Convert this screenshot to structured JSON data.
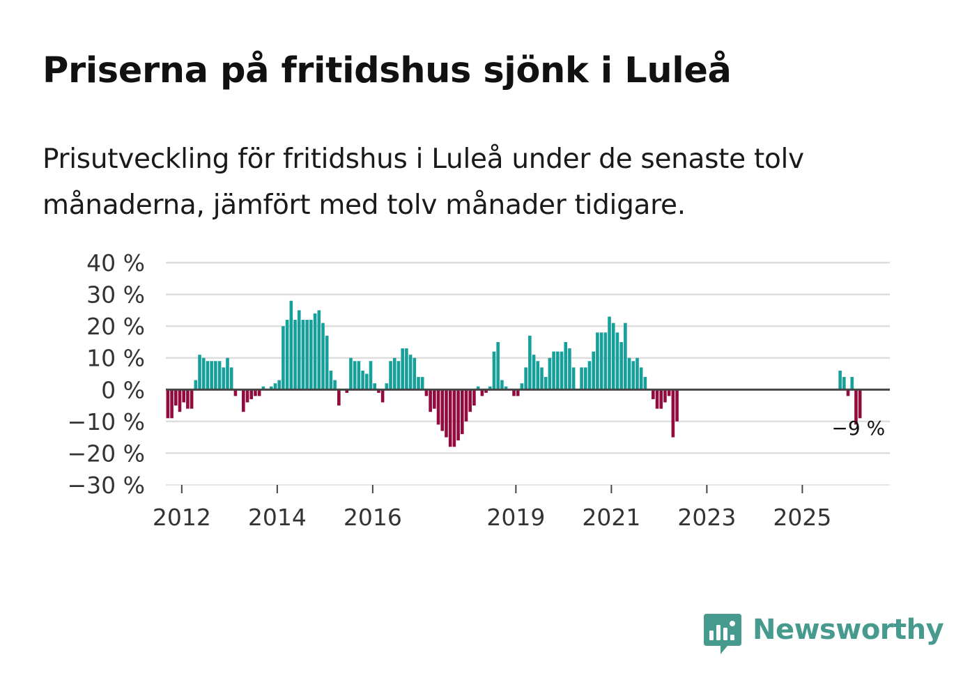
{
  "title": "Priserna på fritidshus sjönk i Luleå",
  "subtitle": "Prisutveckling för fritidshus i Luleå under de senaste tolv månaderna, jämfört med tolv månader tidigare.",
  "brand": {
    "name": "Newsworthy",
    "icon": "bar-chart-speech-bubble-icon",
    "color": "#479a8e"
  },
  "colors": {
    "positive": "#16a09b",
    "negative": "#930a3e",
    "grid": "#dddddd",
    "zero_line": "#444444",
    "text": "#333333"
  },
  "chart_data": {
    "type": "bar",
    "title": "Priserna på fritidshus sjönk i Luleå",
    "ylabel": "",
    "xlabel": "",
    "ylim": [
      -30,
      40
    ],
    "yticks": [
      40,
      30,
      20,
      10,
      0,
      -10,
      -20,
      -30
    ],
    "ytick_labels": [
      "40 %",
      "30 %",
      "20 %",
      "10 %",
      "0 %",
      "−10 %",
      "−20 %",
      "−30 %"
    ],
    "x_start": {
      "year": 2011,
      "month": 9
    },
    "x_end": {
      "year": 2026,
      "month": 10
    },
    "xticks": [
      2012,
      2014,
      2016,
      2019,
      2021,
      2023,
      2025
    ],
    "last_value_label": "−9 %",
    "grid": true,
    "values": [
      -9,
      -9,
      -5,
      -7,
      -4,
      -6,
      -6,
      3,
      11,
      10,
      9,
      9,
      9,
      9,
      7,
      10,
      7,
      -2,
      0,
      -7,
      -4,
      -3,
      -2,
      -2,
      1,
      0,
      1,
      2,
      3,
      20,
      22,
      28,
      22,
      25,
      22,
      22,
      22,
      24,
      25,
      21,
      17,
      6,
      3,
      -5,
      0,
      -1,
      10,
      9,
      9,
      6,
      5,
      9,
      2,
      -1,
      -4,
      2,
      9,
      10,
      9,
      13,
      13,
      11,
      10,
      4,
      4,
      -2,
      -7,
      -6,
      -11,
      -13,
      -15,
      -18,
      -18,
      -16,
      -14,
      -10,
      -7,
      -5,
      1,
      -2,
      -1,
      1,
      12,
      15,
      3,
      1,
      0,
      -2,
      -2,
      2,
      7,
      17,
      11,
      9,
      7,
      4,
      10,
      12,
      12,
      12,
      15,
      13,
      7,
      0,
      7,
      7,
      9,
      12,
      18,
      18,
      18,
      23,
      21,
      18,
      15,
      21,
      10,
      9,
      10,
      7,
      4,
      0,
      -3,
      -6,
      -6,
      -4,
      -2,
      -15,
      -10,
      null,
      null,
      null,
      null,
      null,
      null,
      null,
      null,
      null,
      null,
      null,
      null,
      null,
      null,
      null,
      null,
      null,
      null,
      null,
      null,
      null,
      null,
      null,
      null,
      null,
      null,
      null,
      null,
      null,
      null,
      null,
      null,
      null,
      null,
      null,
      null,
      null,
      null,
      null,
      null,
      6,
      4,
      -2,
      4,
      -11,
      -9
    ]
  }
}
